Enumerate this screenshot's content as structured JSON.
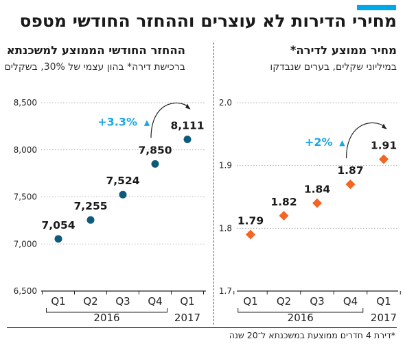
{
  "title": "מחירי הדירות לא עוצרים וההחזר החודשי מטפס",
  "colors": {
    "accent": "#00a8e8",
    "left_series": "#0d5a7a",
    "right_series": "#f26522",
    "change": "#1aa6e8"
  },
  "footnote": "*דירת 4 חדרים ממוצעת במשכנתא ל־20 שנה",
  "chart_data": [
    {
      "type": "scatter",
      "title": "ההחזר החודשי הממוצע למשכנתא",
      "subtitle": "ברכישת דירה* בהון עצמי של 30%, בשקלים",
      "categories": [
        "Q1",
        "Q2",
        "Q3",
        "Q4",
        "Q1"
      ],
      "category_groups": [
        {
          "label": "2016",
          "from": 0,
          "to": 3
        },
        {
          "label": "2017",
          "from": 4,
          "to": 4
        }
      ],
      "values": [
        7054,
        7255,
        7524,
        7850,
        8111
      ],
      "value_labels": [
        "7,054",
        "7,255",
        "7,524",
        "7,850",
        "8,111"
      ],
      "ylim": [
        6500,
        8500
      ],
      "yticks": [
        6500,
        7000,
        7500,
        8000,
        8500
      ],
      "ytick_labels": [
        "6,500",
        "7,000",
        "7,500",
        "8,000",
        "8,500"
      ],
      "marker": "circle",
      "change_label": "+3.3%",
      "change_arrow": "▲",
      "change_from": 3,
      "change_to": 4
    },
    {
      "type": "scatter",
      "title": "מחיר ממוצע לדירה*",
      "subtitle": "במיליוני שקלים, בערים שנבדקו",
      "categories": [
        "Q1",
        "Q2",
        "Q3",
        "Q4",
        "Q1"
      ],
      "category_groups": [
        {
          "label": "2016",
          "from": 0,
          "to": 3
        },
        {
          "label": "2017",
          "from": 4,
          "to": 4
        }
      ],
      "values": [
        1.79,
        1.82,
        1.84,
        1.87,
        1.91
      ],
      "value_labels": [
        "1.79",
        "1.82",
        "1.84",
        "1.87",
        "1.91"
      ],
      "ylim": [
        1.7,
        2.0
      ],
      "yticks": [
        1.7,
        1.8,
        1.9,
        2.0
      ],
      "ytick_labels": [
        "1.7",
        "1.8",
        "1.9",
        "2.0"
      ],
      "marker": "diamond",
      "change_label": "+2%",
      "change_arrow": "▲",
      "change_from": 3,
      "change_to": 4
    }
  ]
}
